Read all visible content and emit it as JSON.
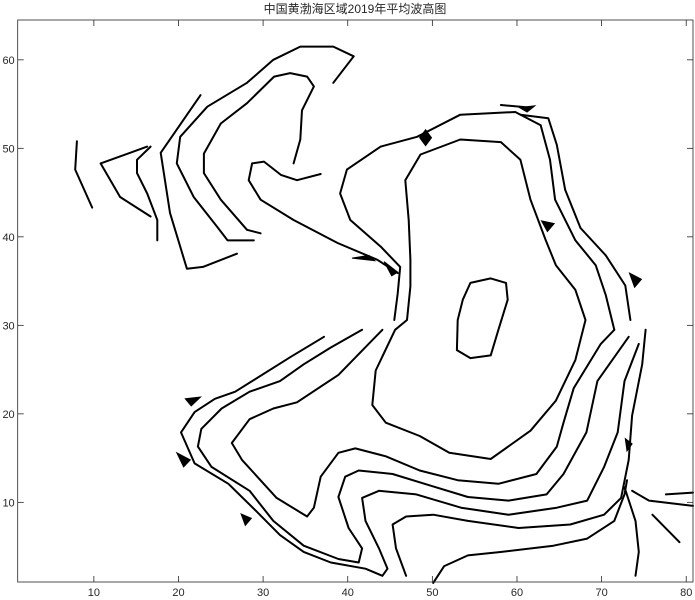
{
  "chart_data": {
    "type": "contour",
    "title": "中国黄渤海区域2019年平均波高图",
    "xlabel": "",
    "ylabel": "",
    "xlim": [
      1,
      80.8
    ],
    "ylim": [
      1,
      64.5
    ],
    "xticks": [
      10,
      20,
      30,
      40,
      50,
      60,
      70,
      80
    ],
    "yticks": [
      10,
      20,
      30,
      40,
      50,
      60
    ],
    "grid": false,
    "line_color": "#000000",
    "contours": [
      {
        "id": "center-oval",
        "points": [
          [
            54.5,
            34.8
          ],
          [
            56.9,
            35.3
          ],
          [
            58.7,
            34.8
          ],
          [
            58.9,
            32.9
          ],
          [
            57.8,
            29.5
          ],
          [
            56.9,
            26.6
          ],
          [
            54.5,
            26.3
          ],
          [
            52.9,
            27.2
          ],
          [
            53,
            30.6
          ],
          [
            53.6,
            32.9
          ],
          [
            54.5,
            34.8
          ]
        ]
      },
      {
        "id": "inner-loop",
        "points": [
          [
            46.8,
            46.4
          ],
          [
            48.6,
            49.3
          ],
          [
            53.3,
            51
          ],
          [
            58.1,
            50.7
          ],
          [
            60.4,
            48.7
          ],
          [
            61.6,
            44.2
          ],
          [
            63.4,
            39.6
          ],
          [
            64.6,
            36.8
          ],
          [
            66.9,
            34
          ],
          [
            68.1,
            30.6
          ],
          [
            66.9,
            26.1
          ],
          [
            64.6,
            21.5
          ],
          [
            61.6,
            18.1
          ],
          [
            56.9,
            14.9
          ],
          [
            52,
            15.6
          ],
          [
            48.5,
            17.5
          ],
          [
            44.5,
            19
          ],
          [
            42.9,
            21
          ],
          [
            43.3,
            24.9
          ],
          [
            45.6,
            29.5
          ],
          [
            47,
            30.6
          ],
          [
            47.4,
            34.4
          ],
          [
            47.4,
            37.4
          ],
          [
            47.2,
            41.9
          ],
          [
            46.8,
            46.4
          ]
        ]
      },
      {
        "id": "strait-line",
        "points": [
          [
            45.5,
            30.6
          ],
          [
            45.9,
            33.6
          ],
          [
            46.2,
            36.6
          ],
          [
            43.9,
            38.9
          ],
          [
            40.3,
            41.9
          ],
          [
            39.1,
            44.9
          ],
          [
            39.9,
            47.6
          ],
          [
            43.9,
            50.2
          ],
          [
            48.2,
            51.3
          ],
          [
            53.3,
            53.8
          ],
          [
            59.8,
            54.1
          ],
          [
            62.8,
            52.6
          ],
          [
            63.9,
            48.7
          ],
          [
            64.5,
            44.2
          ],
          [
            66.9,
            39.6
          ],
          [
            69.3,
            36.8
          ],
          [
            70.5,
            33.4
          ],
          [
            71.5,
            29.5
          ]
        ]
      },
      {
        "id": "south-1",
        "points": [
          [
            44.1,
            29.5
          ],
          [
            38.9,
            24.4
          ],
          [
            34,
            21.3
          ],
          [
            31.2,
            20.6
          ],
          [
            28.4,
            19.4
          ],
          [
            26.3,
            16.7
          ],
          [
            27.5,
            14.8
          ],
          [
            31.6,
            10.5
          ],
          [
            35.2,
            8.4
          ],
          [
            36,
            9.4
          ],
          [
            36.8,
            12.9
          ],
          [
            38.9,
            15.6
          ],
          [
            40.9,
            16.1
          ],
          [
            44.5,
            15.2
          ],
          [
            48.5,
            13.6
          ],
          [
            53,
            12.5
          ],
          [
            57.8,
            12.1
          ],
          [
            62.3,
            13.2
          ],
          [
            64.7,
            16.3
          ],
          [
            65.5,
            19
          ],
          [
            66.7,
            22.9
          ],
          [
            69.9,
            27.9
          ],
          [
            71.5,
            29.5
          ]
        ]
      },
      {
        "id": "south-2",
        "points": [
          [
            41.7,
            29.5
          ],
          [
            38,
            27.5
          ],
          [
            34.8,
            25.6
          ],
          [
            32,
            23.7
          ],
          [
            28.4,
            22.5
          ],
          [
            25.1,
            20.6
          ],
          [
            22.7,
            18.3
          ],
          [
            22.3,
            16.3
          ],
          [
            23.9,
            14
          ],
          [
            28.4,
            11.3
          ],
          [
            31.2,
            7.9
          ],
          [
            34.8,
            5.1
          ],
          [
            38.9,
            3.6
          ],
          [
            41.3,
            3.2
          ],
          [
            41.7,
            4.8
          ],
          [
            40.1,
            7.1
          ],
          [
            38.9,
            10.6
          ],
          [
            39.7,
            12.9
          ],
          [
            41.3,
            13.6
          ],
          [
            45.3,
            13.2
          ],
          [
            50.1,
            11.8
          ],
          [
            54.2,
            10.6
          ],
          [
            59,
            10.2
          ],
          [
            63.5,
            10.9
          ],
          [
            65.5,
            13.2
          ],
          [
            68.2,
            17.9
          ],
          [
            69.5,
            23.7
          ],
          [
            73.2,
            28.7
          ]
        ]
      },
      {
        "id": "south-3",
        "points": [
          [
            37.2,
            28.7
          ],
          [
            33.2,
            26.4
          ],
          [
            26.7,
            22.5
          ],
          [
            24.3,
            21.7
          ],
          [
            21.9,
            20.2
          ],
          [
            20.3,
            17.9
          ],
          [
            21.9,
            14.4
          ],
          [
            25.9,
            12.1
          ],
          [
            29.2,
            9
          ],
          [
            32,
            6.3
          ],
          [
            34.8,
            4.4
          ],
          [
            38,
            3.2
          ],
          [
            42.1,
            2.5
          ],
          [
            44.1,
            1.7
          ],
          [
            44.7,
            2.5
          ],
          [
            43.7,
            4.8
          ],
          [
            42.1,
            7.9
          ],
          [
            41.7,
            10.5
          ],
          [
            43.7,
            11.3
          ],
          [
            48.1,
            10.9
          ],
          [
            53.4,
            9.4
          ],
          [
            59,
            8.6
          ],
          [
            64.7,
            9.4
          ],
          [
            68.3,
            10.2
          ],
          [
            70.3,
            14
          ],
          [
            71.9,
            17.9
          ],
          [
            72.7,
            23.7
          ],
          [
            74.4,
            27.9
          ]
        ]
      },
      {
        "id": "south-4",
        "points": [
          [
            46.9,
            1.7
          ],
          [
            45.7,
            4.8
          ],
          [
            45.3,
            7.5
          ],
          [
            46.9,
            8.4
          ],
          [
            50.1,
            8.6
          ],
          [
            54.2,
            7.9
          ],
          [
            60.2,
            7.1
          ],
          [
            66.3,
            7.5
          ],
          [
            70.3,
            8.6
          ],
          [
            72.3,
            10.5
          ],
          [
            73.2,
            14.8
          ],
          [
            73.6,
            19.8
          ],
          [
            74.8,
            25.6
          ],
          [
            75.2,
            29.5
          ]
        ]
      },
      {
        "id": "south-5",
        "points": [
          [
            50.1,
            0.9
          ],
          [
            51.4,
            2.8
          ],
          [
            54.2,
            4
          ],
          [
            58.2,
            4.4
          ],
          [
            64.3,
            5.1
          ],
          [
            68.3,
            5.9
          ],
          [
            71.5,
            7.9
          ],
          [
            72.7,
            10.9
          ],
          [
            73,
            12.5
          ]
        ]
      },
      {
        "id": "southeast-1",
        "points": [
          [
            72.7,
            11.7
          ],
          [
            74,
            7.9
          ],
          [
            74.4,
            4.4
          ],
          [
            74,
            1.7
          ]
        ]
      },
      {
        "id": "southeast-2",
        "points": [
          [
            73.6,
            11.3
          ],
          [
            75.6,
            10.2
          ],
          [
            80.8,
            9.6
          ]
        ]
      },
      {
        "id": "southeast-3",
        "points": [
          [
            77.6,
            10.9
          ],
          [
            80.8,
            11.1
          ]
        ]
      },
      {
        "id": "southeast-4",
        "points": [
          [
            76,
            8.6
          ],
          [
            79.2,
            5.5
          ]
        ]
      },
      {
        "id": "east-coast",
        "points": [
          [
            60.4,
            53.8
          ],
          [
            63.7,
            53.4
          ],
          [
            64.7,
            50.4
          ],
          [
            65.7,
            45.3
          ],
          [
            67.5,
            41
          ],
          [
            70.5,
            37.9
          ],
          [
            72.8,
            34.5
          ],
          [
            73.4,
            30.6
          ]
        ]
      },
      {
        "id": "east-coast-2",
        "points": [
          [
            58.1,
            54.9
          ],
          [
            61.6,
            54.6
          ]
        ]
      },
      {
        "id": "bohai-1",
        "points": [
          [
            45.9,
            35.9
          ],
          [
            43.5,
            37.4
          ],
          [
            38.8,
            39.3
          ],
          [
            33.6,
            41.9
          ],
          [
            29.7,
            44.2
          ],
          [
            28.3,
            46.4
          ],
          [
            28.7,
            48.3
          ],
          [
            30.1,
            48.5
          ],
          [
            32.1,
            47
          ],
          [
            34,
            46.4
          ],
          [
            36.8,
            47.1
          ]
        ]
      },
      {
        "id": "bohai-2",
        "points": [
          [
            33.6,
            48.3
          ],
          [
            34.4,
            51
          ],
          [
            34.6,
            54.3
          ],
          [
            36,
            57
          ],
          [
            35.2,
            58.1
          ],
          [
            33.2,
            58.5
          ],
          [
            31.3,
            58.1
          ],
          [
            28.1,
            55.1
          ],
          [
            25,
            52.8
          ],
          [
            23,
            49.4
          ],
          [
            23,
            47.2
          ],
          [
            25,
            44.2
          ],
          [
            28.1,
            40.8
          ],
          [
            29.7,
            40.4
          ]
        ]
      },
      {
        "id": "bohai-3",
        "points": [
          [
            38.3,
            57.4
          ],
          [
            40.7,
            60.4
          ],
          [
            38.3,
            61.5
          ],
          [
            34.4,
            61.5
          ],
          [
            31.2,
            60
          ],
          [
            28.1,
            57.4
          ],
          [
            23.4,
            54.7
          ],
          [
            20.2,
            51.3
          ],
          [
            19.8,
            48.3
          ],
          [
            21.8,
            44.5
          ],
          [
            24.6,
            41.1
          ],
          [
            25.8,
            39.6
          ],
          [
            28.9,
            39.6
          ]
        ]
      },
      {
        "id": "bohai-4",
        "points": [
          [
            22.6,
            56
          ],
          [
            17.9,
            49.5
          ],
          [
            19,
            42.7
          ],
          [
            21,
            36.4
          ],
          [
            22.9,
            36.6
          ],
          [
            26.9,
            38.1
          ]
        ]
      },
      {
        "id": "west-1",
        "points": [
          [
            16.7,
            50.2
          ],
          [
            15.1,
            48.7
          ],
          [
            15.1,
            47.2
          ],
          [
            16.3,
            44.9
          ],
          [
            17.5,
            41.9
          ],
          [
            17.5,
            39.6
          ]
        ]
      },
      {
        "id": "west-2",
        "points": [
          [
            16.3,
            50.2
          ],
          [
            10.8,
            48.3
          ],
          [
            13.1,
            44.5
          ],
          [
            16.7,
            42.3
          ]
        ]
      },
      {
        "id": "west-3",
        "points": [
          [
            8,
            50.8
          ],
          [
            7.8,
            47.6
          ],
          [
            9.8,
            43.3
          ]
        ]
      }
    ],
    "filled_patches": [
      [
        [
          48.5,
          51.2
        ],
        [
          49.2,
          52.1
        ],
        [
          49.9,
          51.2
        ],
        [
          49.2,
          50.3
        ]
      ],
      [
        [
          40.5,
          37.6
        ],
        [
          42.5,
          37.9
        ],
        [
          43.2,
          37.3
        ]
      ],
      [
        [
          44.3,
          37.2
        ],
        [
          45.9,
          36.0
        ],
        [
          45.2,
          35.6
        ]
      ],
      [
        [
          19.8,
          15.6
        ],
        [
          21.4,
          14.8
        ],
        [
          20.6,
          14.0
        ]
      ],
      [
        [
          62.9,
          41.8
        ],
        [
          64.4,
          41.5
        ],
        [
          63.6,
          40.6
        ]
      ],
      [
        [
          73.3,
          35.9
        ],
        [
          74.7,
          35.2
        ],
        [
          73.9,
          34.3
        ]
      ],
      [
        [
          27.4,
          8.7
        ],
        [
          28.6,
          8.2
        ],
        [
          27.9,
          7.4
        ]
      ],
      [
        [
          72.8,
          17.2
        ],
        [
          73.6,
          16.6
        ],
        [
          73.0,
          15.8
        ]
      ],
      [
        [
          20.8,
          21.7
        ],
        [
          22.6,
          21.9
        ],
        [
          21.5,
          20.9
        ]
      ],
      [
        [
          60.3,
          54.6
        ],
        [
          62.1,
          54.8
        ],
        [
          61.2,
          54.1
        ]
      ]
    ]
  }
}
